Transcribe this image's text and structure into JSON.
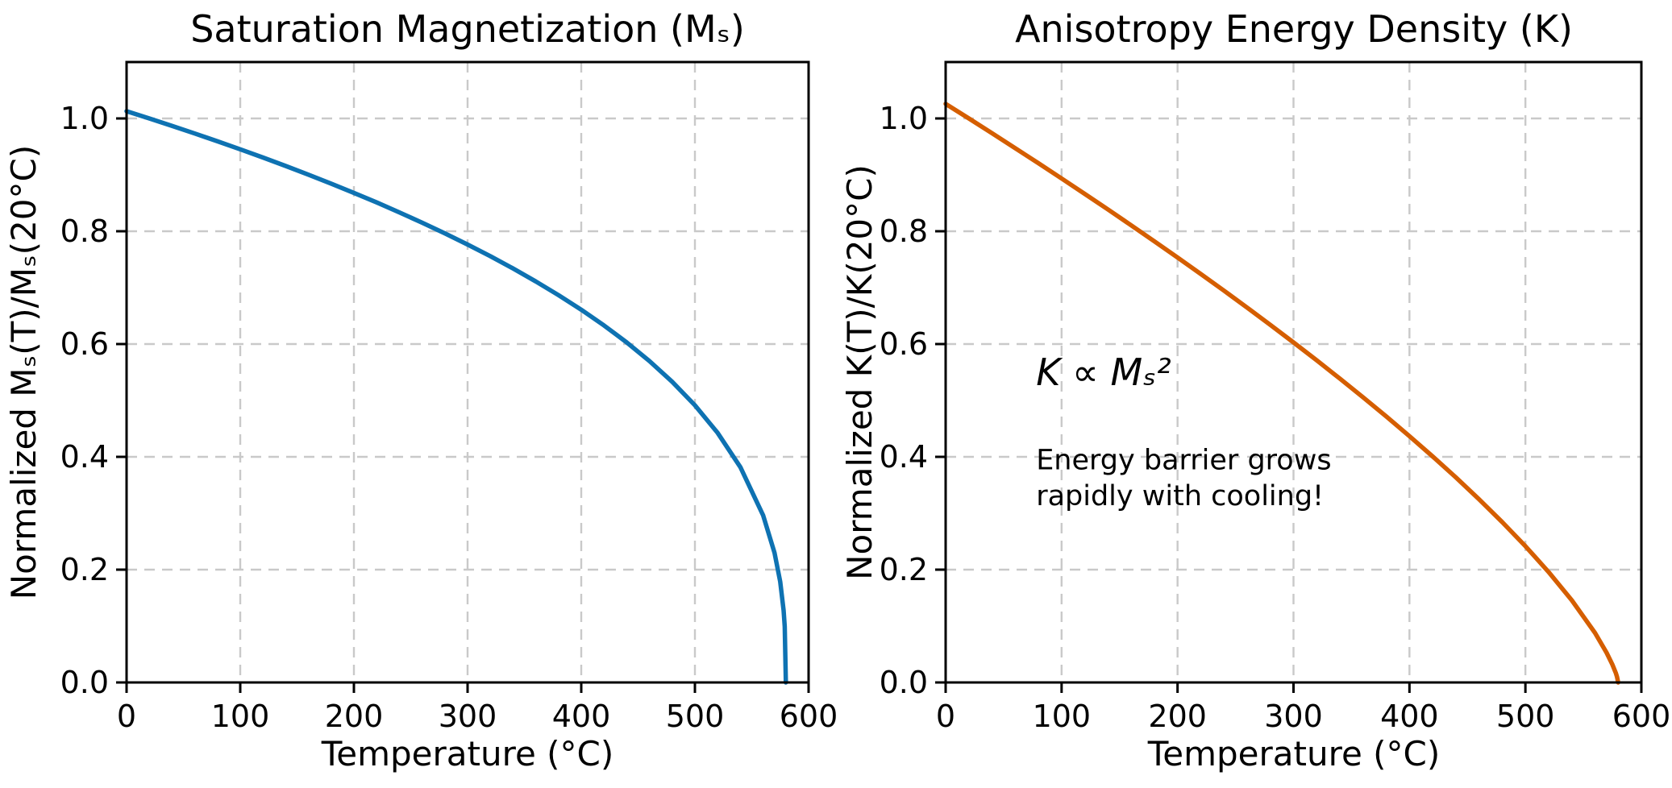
{
  "figure": {
    "background": "#ffffff",
    "grid_color": "#c9c9c9",
    "spine_color": "#000000",
    "text_color": "#000000",
    "note_color": "#5a5a5a"
  },
  "chart_data": [
    {
      "type": "line",
      "title": "Saturation Magnetization (Mₛ)",
      "xlabel": "Temperature (°C)",
      "ylabel": "Normalized Mₛ(T)/Mₛ(20°C)",
      "xlim": [
        0,
        600
      ],
      "ylim": [
        0,
        1.1
      ],
      "xticks": [
        0,
        100,
        200,
        300,
        400,
        500,
        600
      ],
      "ytick_labels": [
        "0.0",
        "0.2",
        "0.4",
        "0.6",
        "0.8",
        "1.0"
      ],
      "grid": true,
      "legend": "none",
      "series": [
        {
          "name": "Ms(T)/Ms(20°C)",
          "color": "#0e72b2",
          "x": [
            0,
            20,
            40,
            60,
            80,
            100,
            120,
            140,
            160,
            180,
            200,
            220,
            240,
            260,
            280,
            300,
            320,
            340,
            360,
            380,
            400,
            420,
            440,
            460,
            480,
            500,
            520,
            540,
            560,
            570,
            575,
            578,
            579,
            580
          ],
          "y": [
            1.0129,
            1.0,
            0.9868,
            0.9733,
            0.9595,
            0.9453,
            0.9307,
            0.9157,
            0.9003,
            0.8844,
            0.868,
            0.8511,
            0.8335,
            0.8152,
            0.7963,
            0.7765,
            0.7558,
            0.734,
            0.711,
            0.6867,
            0.6608,
            0.633,
            0.6029,
            0.5699,
            0.5332,
            0.4915,
            0.4425,
            0.3817,
            0.2963,
            0.2301,
            0.1786,
            0.1279,
            0.0993,
            0.0
          ]
        }
      ]
    },
    {
      "type": "line",
      "title": "Anisotropy Energy Density (K)",
      "xlabel": "Temperature (°C)",
      "ylabel": "Normalized K(T)/K(20°C)",
      "xlim": [
        0,
        600
      ],
      "ylim": [
        0,
        1.1
      ],
      "xticks": [
        0,
        100,
        200,
        300,
        400,
        500,
        600
      ],
      "ytick_labels": [
        "0.0",
        "0.2",
        "0.4",
        "0.6",
        "0.8",
        "1.0"
      ],
      "grid": true,
      "legend": "none",
      "series": [
        {
          "name": "K(T)/K(20°C)",
          "color": "#d55e00",
          "x": [
            0,
            20,
            40,
            60,
            80,
            100,
            120,
            140,
            160,
            180,
            200,
            220,
            240,
            260,
            280,
            300,
            320,
            340,
            360,
            380,
            400,
            420,
            440,
            460,
            480,
            500,
            520,
            540,
            560,
            570,
            575,
            578,
            579,
            580
          ],
          "y": [
            1.0259,
            1.0,
            0.9738,
            0.9473,
            0.9206,
            0.8936,
            0.8662,
            0.8386,
            0.8106,
            0.7822,
            0.7535,
            0.7243,
            0.6947,
            0.6646,
            0.634,
            0.6029,
            0.5712,
            0.5387,
            0.5056,
            0.4716,
            0.4367,
            0.4007,
            0.3635,
            0.3248,
            0.2843,
            0.2416,
            0.1958,
            0.1457,
            0.0878,
            0.0529,
            0.0319,
            0.0164,
            0.0099,
            0.0
          ]
        }
      ],
      "annotation": {
        "formula": "K ∝ Mₛ²",
        "formula_color": "#d55e00",
        "formula_pos": {
          "x": 78,
          "y": 0.527
        },
        "note_lines": [
          "Energy barrier grows",
          "rapidly with cooling!"
        ],
        "note_color": "#5a5a5a",
        "note_pos": {
          "x": 78,
          "y": 0.378
        },
        "note_line_step": 0.064
      }
    }
  ]
}
